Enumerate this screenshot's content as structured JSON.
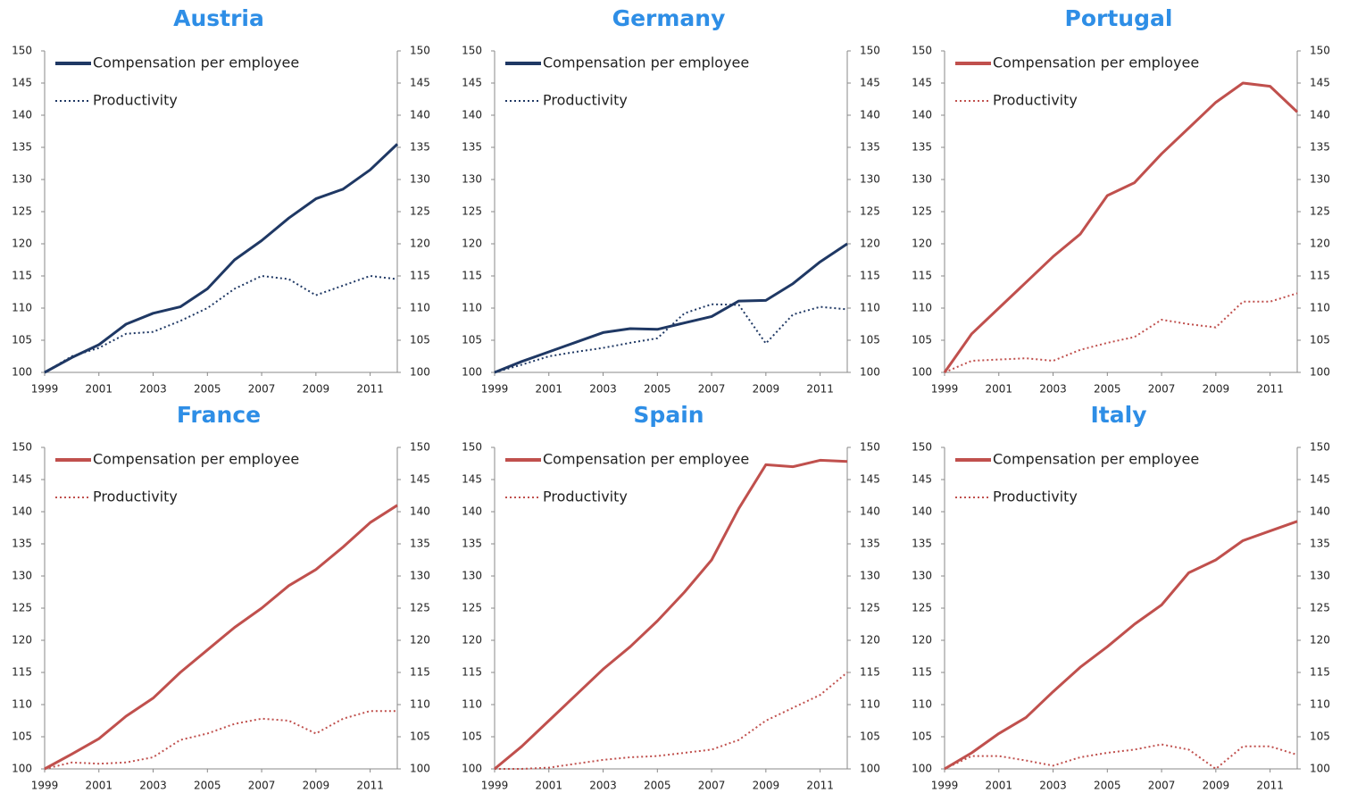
{
  "chart_data": [
    {
      "type": "line",
      "title": "Austria",
      "x": [
        1999,
        2000,
        2001,
        2002,
        2003,
        2004,
        2005,
        2006,
        2007,
        2008,
        2009,
        2010,
        2011,
        2012
      ],
      "xlim": [
        1999,
        2012
      ],
      "xticks": [
        1999,
        2001,
        2003,
        2005,
        2007,
        2009,
        2011
      ],
      "ylim": [
        100,
        150
      ],
      "yticks": [
        100,
        105,
        110,
        115,
        120,
        125,
        130,
        135,
        140,
        145,
        150
      ],
      "y2lim": [
        100,
        150
      ],
      "y2ticks": [
        100,
        105,
        110,
        115,
        120,
        125,
        130,
        135,
        140,
        145,
        150
      ],
      "grid": false,
      "series": [
        {
          "name": "Compensation per employee",
          "color": "#1f3864",
          "line_style": "solid",
          "values": [
            100,
            102.3,
            104.3,
            107.5,
            109.2,
            110.2,
            113,
            117.5,
            120.5,
            124,
            127,
            128.5,
            131.5,
            135.5
          ]
        },
        {
          "name": "Productivity",
          "color": "#1f3864",
          "line_style": "dotted",
          "values": [
            100,
            102.5,
            103.8,
            106,
            106.3,
            108,
            110,
            113,
            115,
            114.5,
            112,
            113.5,
            115,
            114.5
          ]
        }
      ]
    },
    {
      "type": "line",
      "title": "Germany",
      "x": [
        1999,
        2000,
        2001,
        2002,
        2003,
        2004,
        2005,
        2006,
        2007,
        2008,
        2009,
        2010,
        2011,
        2012
      ],
      "xlim": [
        1999,
        2012
      ],
      "xticks": [
        1999,
        2001,
        2003,
        2005,
        2007,
        2009,
        2011
      ],
      "ylim": [
        100,
        150
      ],
      "yticks": [
        100,
        105,
        110,
        115,
        120,
        125,
        130,
        135,
        140,
        145,
        150
      ],
      "y2lim": [
        100,
        150
      ],
      "y2ticks": [
        100,
        105,
        110,
        115,
        120,
        125,
        130,
        135,
        140,
        145,
        150
      ],
      "grid": false,
      "series": [
        {
          "name": "Compensation per employee",
          "color": "#1f3864",
          "line_style": "solid",
          "values": [
            100,
            101.7,
            103.2,
            104.7,
            106.2,
            106.8,
            106.7,
            107.7,
            108.7,
            111.1,
            111.2,
            113.8,
            117.2,
            120
          ]
        },
        {
          "name": "Productivity",
          "color": "#1f3864",
          "line_style": "dotted",
          "values": [
            100,
            101.2,
            102.5,
            103.2,
            103.8,
            104.6,
            105.3,
            109.2,
            110.6,
            110.5,
            104.5,
            109,
            110.2,
            109.8
          ]
        }
      ]
    },
    {
      "type": "line",
      "title": "Portugal",
      "x": [
        1999,
        2000,
        2001,
        2002,
        2003,
        2004,
        2005,
        2006,
        2007,
        2008,
        2009,
        2010,
        2011,
        2012
      ],
      "xlim": [
        1999,
        2012
      ],
      "xticks": [
        1999,
        2001,
        2003,
        2005,
        2007,
        2009,
        2011
      ],
      "ylim": [
        100,
        150
      ],
      "yticks": [
        100,
        105,
        110,
        115,
        120,
        125,
        130,
        135,
        140,
        145,
        150
      ],
      "y2lim": [
        100,
        150
      ],
      "y2ticks": [
        100,
        105,
        110,
        115,
        120,
        125,
        130,
        135,
        140,
        145,
        150
      ],
      "grid": false,
      "series": [
        {
          "name": "Compensation per employee",
          "color": "#c0504d",
          "line_style": "solid",
          "values": [
            100,
            106,
            110,
            114,
            118,
            121.5,
            127.5,
            129.5,
            134,
            138,
            142,
            145,
            144.5,
            140.5
          ]
        },
        {
          "name": "Productivity",
          "color": "#c0504d",
          "line_style": "dotted",
          "values": [
            100,
            101.8,
            102,
            102.2,
            101.8,
            103.5,
            104.6,
            105.5,
            108.2,
            107.5,
            107,
            111,
            111,
            112.3
          ]
        }
      ]
    },
    {
      "type": "line",
      "title": "France",
      "x": [
        1999,
        2000,
        2001,
        2002,
        2003,
        2004,
        2005,
        2006,
        2007,
        2008,
        2009,
        2010,
        2011,
        2012
      ],
      "xlim": [
        1999,
        2012
      ],
      "xticks": [
        1999,
        2001,
        2003,
        2005,
        2007,
        2009,
        2011
      ],
      "ylim": [
        100,
        150
      ],
      "yticks": [
        100,
        105,
        110,
        115,
        120,
        125,
        130,
        135,
        140,
        145,
        150
      ],
      "y2lim": [
        100,
        150
      ],
      "y2ticks": [
        100,
        105,
        110,
        115,
        120,
        125,
        130,
        135,
        140,
        145,
        150
      ],
      "grid": false,
      "series": [
        {
          "name": "Compensation per employee",
          "color": "#c0504d",
          "line_style": "solid",
          "values": [
            100,
            102.3,
            104.7,
            108.2,
            111,
            115,
            118.5,
            122,
            125,
            128.5,
            131,
            134.5,
            138.3,
            141
          ]
        },
        {
          "name": "Productivity",
          "color": "#c0504d",
          "line_style": "dotted",
          "values": [
            100,
            101,
            100.8,
            101,
            101.8,
            104.5,
            105.5,
            107,
            107.8,
            107.5,
            105.5,
            107.8,
            109,
            109
          ]
        }
      ]
    },
    {
      "type": "line",
      "title": "Spain",
      "x": [
        1999,
        2000,
        2001,
        2002,
        2003,
        2004,
        2005,
        2006,
        2007,
        2008,
        2009,
        2010,
        2011,
        2012
      ],
      "xlim": [
        1999,
        2012
      ],
      "xticks": [
        1999,
        2001,
        2003,
        2005,
        2007,
        2009,
        2011
      ],
      "ylim": [
        100,
        150
      ],
      "yticks": [
        100,
        105,
        110,
        115,
        120,
        125,
        130,
        135,
        140,
        145,
        150
      ],
      "y2lim": [
        100,
        150
      ],
      "y2ticks": [
        100,
        105,
        110,
        115,
        120,
        125,
        130,
        135,
        140,
        145,
        150
      ],
      "grid": false,
      "series": [
        {
          "name": "Compensation per employee",
          "color": "#c0504d",
          "line_style": "solid",
          "values": [
            100,
            103.5,
            107.5,
            111.5,
            115.5,
            119,
            123,
            127.5,
            132.5,
            140.5,
            147.3,
            147,
            148,
            147.8
          ]
        },
        {
          "name": "Productivity",
          "color": "#c0504d",
          "line_style": "dotted",
          "values": [
            100,
            100,
            100.2,
            100.8,
            101.4,
            101.8,
            102,
            102.5,
            103,
            104.5,
            107.5,
            109.5,
            111.5,
            115
          ]
        }
      ]
    },
    {
      "type": "line",
      "title": "Italy",
      "x": [
        1999,
        2000,
        2001,
        2002,
        2003,
        2004,
        2005,
        2006,
        2007,
        2008,
        2009,
        2010,
        2011,
        2012
      ],
      "xlim": [
        1999,
        2012
      ],
      "xticks": [
        1999,
        2001,
        2003,
        2005,
        2007,
        2009,
        2011
      ],
      "ylim": [
        100,
        150
      ],
      "yticks": [
        100,
        105,
        110,
        115,
        120,
        125,
        130,
        135,
        140,
        145,
        150
      ],
      "y2lim": [
        100,
        150
      ],
      "y2ticks": [
        100,
        105,
        110,
        115,
        120,
        125,
        130,
        135,
        140,
        145,
        150
      ],
      "grid": false,
      "series": [
        {
          "name": "Compensation per employee",
          "color": "#c0504d",
          "line_style": "solid",
          "values": [
            100,
            102.5,
            105.5,
            108,
            112,
            115.8,
            119,
            122.5,
            125.5,
            130.5,
            132.5,
            135.5,
            137,
            138.5
          ]
        },
        {
          "name": "Productivity",
          "color": "#c0504d",
          "line_style": "dotted",
          "values": [
            100,
            102,
            102,
            101.3,
            100.5,
            101.8,
            102.5,
            103,
            103.8,
            103,
            100,
            103.5,
            103.5,
            102.2
          ]
        }
      ]
    }
  ]
}
